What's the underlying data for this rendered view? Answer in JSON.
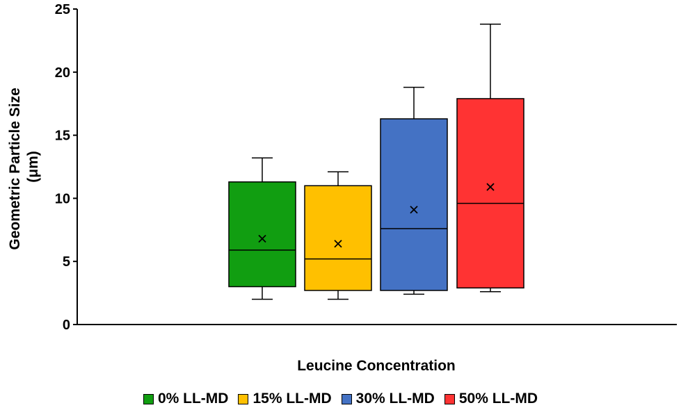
{
  "chart_data": {
    "type": "box",
    "xlabel": "Leucine Concentration",
    "ylabel": [
      "Geometric Particle Size",
      "(μm)"
    ],
    "ylim": [
      0,
      25
    ],
    "yticks": [
      0,
      5,
      10,
      15,
      20,
      25
    ],
    "grid": false,
    "legend_position": "bottom",
    "series": [
      {
        "name": "0% LL-MD",
        "color": "#119E11",
        "min": 2.0,
        "q1": 3.0,
        "median": 5.9,
        "q3": 11.3,
        "max": 13.2,
        "mean": 6.8
      },
      {
        "name": "15% LL-MD",
        "color": "#FFC000",
        "min": 2.0,
        "q1": 2.7,
        "median": 5.2,
        "q3": 11.0,
        "max": 12.1,
        "mean": 6.4
      },
      {
        "name": "30% LL-MD",
        "color": "#4472C4",
        "min": 2.4,
        "q1": 2.7,
        "median": 7.6,
        "q3": 16.3,
        "max": 18.8,
        "mean": 9.1
      },
      {
        "name": "50% LL-MD",
        "color": "#FF3333",
        "min": 2.6,
        "q1": 2.9,
        "median": 9.6,
        "q3": 17.9,
        "max": 23.8,
        "mean": 10.9
      }
    ]
  }
}
